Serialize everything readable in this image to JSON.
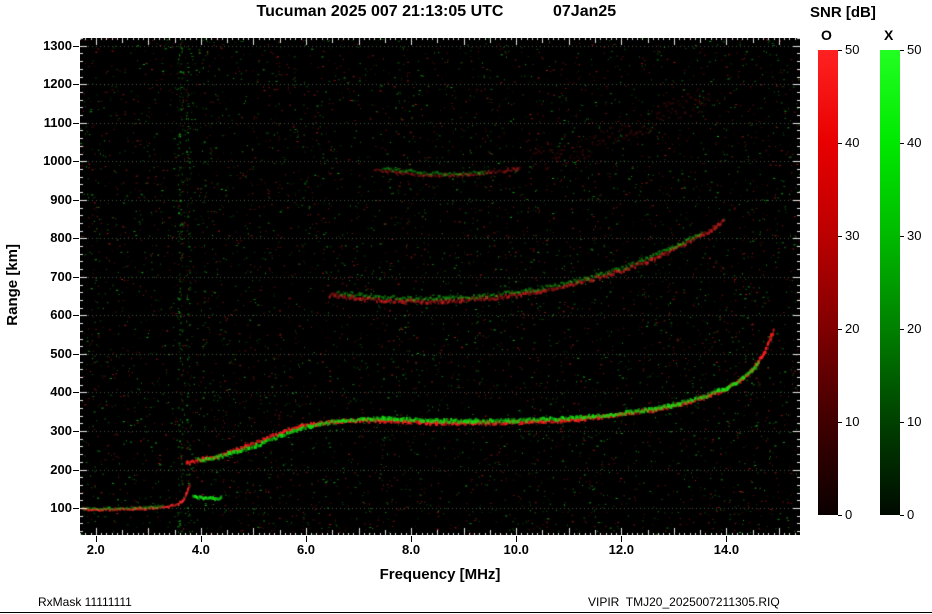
{
  "header": {
    "title": "Tucuman 2025 007 21:13:05 UTC",
    "date": "07Jan25"
  },
  "footer": {
    "left": "RxMask 11111111",
    "right": "VIPIR  TMJ20_2025007211305.RIQ"
  },
  "colorbar": {
    "title": "SNR [dB]",
    "o_label": "O",
    "x_label": "X",
    "ticks": [
      0,
      10,
      20,
      30,
      40,
      50
    ],
    "max": 50,
    "o_gradient": [
      "#0a0000",
      "#400000",
      "#800000",
      "#bb0000",
      "#e80000",
      "#ff2222"
    ],
    "x_gradient": [
      "#000a00",
      "#004000",
      "#008000",
      "#00ba00",
      "#00e800",
      "#22ff22"
    ]
  },
  "chart_data": {
    "type": "heatmap",
    "title": "Tucuman 2025 007 21:13:05 UTC",
    "xlabel": "Frequency [MHz]",
    "ylabel": "Range [km]",
    "x_range": [
      1.7,
      15.4
    ],
    "y_range": [
      30,
      1320
    ],
    "x_ticks": [
      2,
      4,
      6,
      8,
      10,
      12,
      14
    ],
    "x_tick_labels": [
      "2.0",
      "4.0",
      "6.0",
      "8.0",
      "10.0",
      "12.0",
      "14.0"
    ],
    "y_ticks": [
      100,
      200,
      300,
      400,
      500,
      600,
      700,
      800,
      900,
      1000,
      1100,
      1200,
      1300
    ],
    "background": "#000000",
    "grid": "horizontal dotted",
    "grid_color": "rgba(150,180,150,0.45)",
    "legend_position": "right",
    "mode_colors": {
      "O": "#ff0000",
      "X": "#00dd00"
    },
    "noise": {
      "density": 0.018,
      "red_fraction": 0.52
    },
    "rfi_bands": [
      {
        "freq": 3.6,
        "width": 0.1,
        "color": "#19b419",
        "density": 0.3
      },
      {
        "freq": 3.76,
        "width": 0.09,
        "color": "#17a817",
        "density": 0.22
      },
      {
        "freq": 3.68,
        "width": 0.16,
        "color": "#b42020",
        "density": 0.1
      },
      {
        "freq": 4.05,
        "width": 0.05,
        "color": "#158f15",
        "density": 0.08
      },
      {
        "freq": 7.92,
        "width": 0.05,
        "color": "#8f1717",
        "density": 0.05
      },
      {
        "freq": 5.48,
        "width": 0.04,
        "color": "#8f1717",
        "density": 0.04
      },
      {
        "freq": 10.38,
        "width": 0.05,
        "color": "#8f1717",
        "density": 0.04
      },
      {
        "freq": 12.9,
        "width": 0.04,
        "color": "#8f1717",
        "density": 0.03
      }
    ],
    "traces": [
      {
        "name": "E-layer-O",
        "mode": "O",
        "color": "#ff2a2a",
        "intensity": 0.9,
        "size": 2,
        "jitter": 2,
        "points": [
          [
            1.75,
            96
          ],
          [
            2.0,
            95
          ],
          [
            2.3,
            96
          ],
          [
            2.6,
            97
          ],
          [
            2.9,
            99
          ],
          [
            3.2,
            101
          ],
          [
            3.4,
            104
          ],
          [
            3.55,
            109
          ],
          [
            3.65,
            118
          ],
          [
            3.71,
            130
          ],
          [
            3.75,
            145
          ],
          [
            3.78,
            160
          ]
        ]
      },
      {
        "name": "E-layer-X",
        "mode": "X",
        "color": "#17d417",
        "intensity": 0.45,
        "size": 2,
        "jitter": 2,
        "points": [
          [
            1.75,
            99
          ],
          [
            2.1,
            98
          ],
          [
            2.45,
            99
          ],
          [
            2.8,
            101
          ],
          [
            3.1,
            103
          ],
          [
            3.3,
            106
          ]
        ]
      },
      {
        "name": "Es-X-blob",
        "mode": "X",
        "color": "#1ae81a",
        "intensity": 1.0,
        "size": 3,
        "jitter": 2,
        "points": [
          [
            3.85,
            131
          ],
          [
            3.95,
            128
          ],
          [
            4.05,
            126
          ],
          [
            4.18,
            124
          ],
          [
            4.3,
            124
          ],
          [
            4.42,
            126
          ]
        ]
      },
      {
        "name": "F-layer-O",
        "mode": "O",
        "color": "#ff1f1f",
        "intensity": 1.0,
        "size": 3,
        "jitter": 3,
        "points": [
          [
            3.73,
            220
          ],
          [
            3.85,
            219
          ],
          [
            4.0,
            224
          ],
          [
            4.2,
            230
          ],
          [
            4.4,
            238
          ],
          [
            4.65,
            249
          ],
          [
            4.9,
            261
          ],
          [
            5.15,
            275
          ],
          [
            5.4,
            289
          ],
          [
            5.65,
            301
          ],
          [
            5.9,
            311
          ],
          [
            6.15,
            318
          ],
          [
            6.4,
            322
          ],
          [
            6.7,
            325
          ],
          [
            7.0,
            326
          ],
          [
            7.3,
            326
          ],
          [
            7.6,
            325
          ],
          [
            7.9,
            324
          ],
          [
            8.2,
            322
          ],
          [
            8.5,
            321
          ],
          [
            8.8,
            321
          ],
          [
            9.1,
            320
          ],
          [
            9.4,
            320
          ],
          [
            9.7,
            321
          ],
          [
            10.0,
            322
          ],
          [
            10.3,
            324
          ],
          [
            10.6,
            326
          ],
          [
            10.9,
            328
          ],
          [
            11.2,
            331
          ],
          [
            11.5,
            335
          ],
          [
            11.8,
            339
          ],
          [
            12.1,
            344
          ],
          [
            12.4,
            350
          ],
          [
            12.7,
            357
          ],
          [
            13.0,
            365
          ],
          [
            13.3,
            375
          ],
          [
            13.6,
            388
          ],
          [
            13.85,
            400
          ],
          [
            14.05,
            413
          ],
          [
            14.25,
            429
          ],
          [
            14.4,
            446
          ],
          [
            14.52,
            463
          ],
          [
            14.62,
            481
          ],
          [
            14.7,
            500
          ],
          [
            14.78,
            522
          ],
          [
            14.85,
            545
          ],
          [
            14.91,
            562
          ]
        ]
      },
      {
        "name": "F-layer-X",
        "mode": "X",
        "color": "#12e012",
        "intensity": 0.95,
        "size": 3,
        "jitter": 3,
        "points": [
          [
            3.95,
            227
          ],
          [
            4.1,
            226
          ],
          [
            4.3,
            231
          ],
          [
            4.5,
            238
          ],
          [
            4.75,
            248
          ],
          [
            5.0,
            259
          ],
          [
            5.25,
            272
          ],
          [
            5.5,
            286
          ],
          [
            5.75,
            298
          ],
          [
            6.0,
            309
          ],
          [
            6.25,
            317
          ],
          [
            6.5,
            323
          ],
          [
            6.8,
            328
          ],
          [
            7.1,
            330
          ],
          [
            7.4,
            331
          ],
          [
            7.7,
            330
          ],
          [
            8.0,
            329
          ],
          [
            8.3,
            327
          ],
          [
            8.6,
            326
          ],
          [
            8.9,
            326
          ],
          [
            9.2,
            325
          ],
          [
            9.5,
            325
          ],
          [
            9.8,
            326
          ],
          [
            10.1,
            327
          ],
          [
            10.4,
            329
          ],
          [
            10.7,
            331
          ],
          [
            11.0,
            333
          ],
          [
            11.3,
            336
          ],
          [
            11.6,
            340
          ],
          [
            11.9,
            344
          ],
          [
            12.2,
            349
          ],
          [
            12.5,
            355
          ],
          [
            12.8,
            362
          ],
          [
            13.1,
            371
          ],
          [
            13.4,
            382
          ],
          [
            13.7,
            395
          ],
          [
            13.95,
            408
          ],
          [
            14.15,
            422
          ],
          [
            14.32,
            437
          ],
          [
            14.45,
            452
          ],
          [
            14.55,
            467
          ],
          [
            14.63,
            480
          ]
        ]
      },
      {
        "name": "F-second-hop-O",
        "mode": "O",
        "color": "#e62222",
        "intensity": 0.7,
        "size": 3,
        "jitter": 4,
        "points": [
          [
            6.45,
            653
          ],
          [
            6.8,
            647
          ],
          [
            7.15,
            642
          ],
          [
            7.5,
            639
          ],
          [
            7.85,
            637
          ],
          [
            8.2,
            636
          ],
          [
            8.55,
            637
          ],
          [
            8.9,
            639
          ],
          [
            9.25,
            642
          ],
          [
            9.6,
            646
          ],
          [
            9.95,
            652
          ],
          [
            10.3,
            659
          ],
          [
            10.65,
            668
          ],
          [
            11.0,
            678
          ],
          [
            11.35,
            690
          ],
          [
            11.7,
            703
          ],
          [
            12.05,
            718
          ],
          [
            12.4,
            735
          ],
          [
            12.75,
            755
          ],
          [
            13.1,
            777
          ],
          [
            13.4,
            799
          ],
          [
            13.7,
            822
          ],
          [
            13.95,
            845
          ]
        ]
      },
      {
        "name": "F-second-hop-X",
        "mode": "X",
        "color": "#14cc14",
        "intensity": 0.55,
        "size": 2,
        "jitter": 4,
        "points": [
          [
            6.6,
            660
          ],
          [
            6.95,
            654
          ],
          [
            7.3,
            649
          ],
          [
            7.65,
            646
          ],
          [
            8.0,
            644
          ],
          [
            8.35,
            644
          ],
          [
            8.7,
            645
          ],
          [
            9.05,
            647
          ],
          [
            9.4,
            651
          ],
          [
            9.75,
            656
          ],
          [
            10.1,
            662
          ],
          [
            10.45,
            670
          ],
          [
            10.8,
            679
          ],
          [
            11.15,
            690
          ],
          [
            11.5,
            702
          ],
          [
            11.85,
            716
          ],
          [
            12.2,
            732
          ],
          [
            12.55,
            751
          ],
          [
            12.9,
            772
          ],
          [
            13.25,
            795
          ],
          [
            13.55,
            818
          ]
        ]
      },
      {
        "name": "spread-trace-O",
        "mode": "O",
        "color": "#d02020",
        "intensity": 0.55,
        "size": 2,
        "jitter": 3,
        "points": [
          [
            7.3,
            978
          ],
          [
            7.7,
            971
          ],
          [
            8.1,
            966
          ],
          [
            8.5,
            963
          ],
          [
            8.9,
            964
          ],
          [
            9.3,
            968
          ],
          [
            9.7,
            974
          ],
          [
            10.1,
            982
          ]
        ]
      },
      {
        "name": "spread-trace-X",
        "mode": "X",
        "color": "#12bb12",
        "intensity": 0.5,
        "size": 2,
        "jitter": 3,
        "points": [
          [
            7.45,
            982
          ],
          [
            7.85,
            975
          ],
          [
            8.25,
            970
          ],
          [
            8.65,
            967
          ],
          [
            9.05,
            968
          ],
          [
            9.45,
            972
          ]
        ]
      },
      {
        "name": "high-scatter-O",
        "mode": "O",
        "color": "#aa1818",
        "intensity": 0.25,
        "size": 2,
        "jitter": 22,
        "points": [
          [
            10.3,
            995
          ],
          [
            11.0,
            1020
          ],
          [
            11.7,
            1055
          ],
          [
            12.4,
            1095
          ],
          [
            13.1,
            1140
          ],
          [
            13.7,
            1180
          ]
        ]
      }
    ]
  }
}
